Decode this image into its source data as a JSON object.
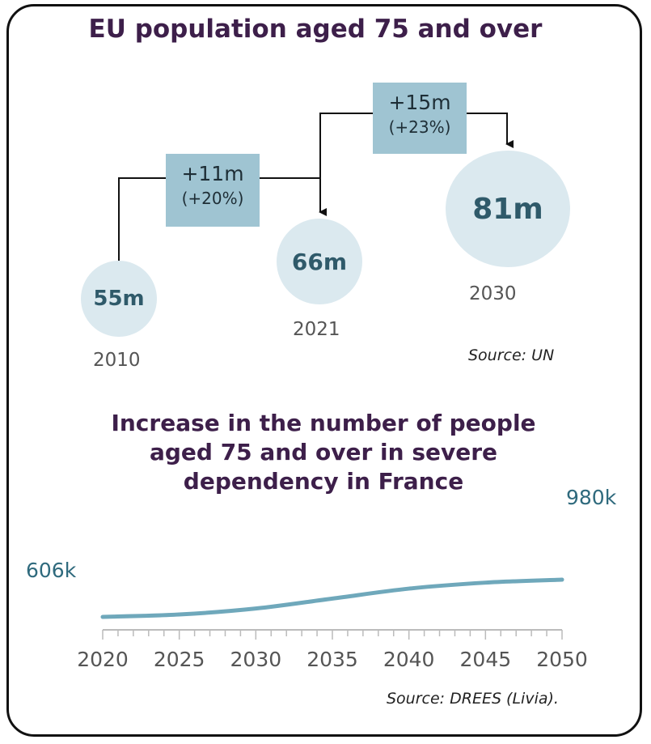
{
  "chart_data": [
    {
      "type": "bubble",
      "title": "EU population aged 75 and over",
      "points": [
        {
          "year": "2010",
          "value": 55,
          "label": "55m"
        },
        {
          "year": "2021",
          "value": 66,
          "label": "66m"
        },
        {
          "year": "2030",
          "value": 81,
          "label": "81m"
        }
      ],
      "changes": [
        {
          "from": "2010",
          "to": "2021",
          "amount": "+11m",
          "percent": "(+20%)"
        },
        {
          "from": "2021",
          "to": "2030",
          "amount": "+15m",
          "percent": "(+23%)"
        }
      ],
      "source": "Source: UN"
    },
    {
      "type": "line",
      "title": "Increase in the number of people aged 75 and over in severe dependency in France",
      "x": [
        2020,
        2025,
        2030,
        2035,
        2040,
        2045,
        2050
      ],
      "y": [
        606,
        630,
        690,
        790,
        890,
        950,
        980
      ],
      "xlim": [
        2020,
        2050
      ],
      "x_tick_labels": [
        "2020",
        "2025",
        "2030",
        "2035",
        "2040",
        "2045",
        "2050"
      ],
      "start_label": "606k",
      "end_label": "980k",
      "source": "Source: DREES (Livia)."
    }
  ]
}
